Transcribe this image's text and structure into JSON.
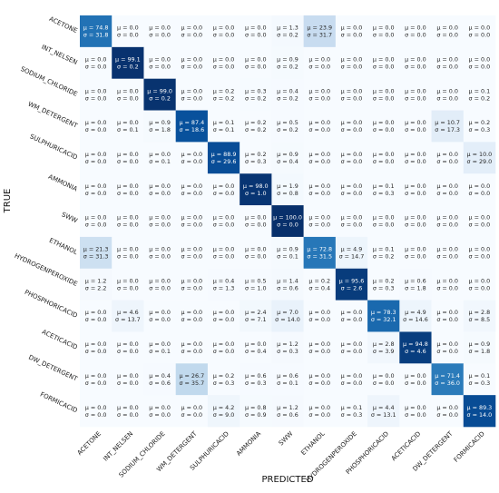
{
  "chart_data": {
    "type": "heatmap",
    "xlabel": "PREDICTED",
    "ylabel": "TRUE",
    "categories": [
      "ACETONE",
      "INT_NELSEN",
      "SODIUM_CHLORIDE",
      "WM_DETERGENT",
      "SULPHURICACID",
      "AMMONIA",
      "SWW",
      "ETHANOL",
      "HYDROGENPEROXIDE",
      "PHOSPHORICACID",
      "ACETICACID",
      "DW_DETERGENT",
      "FORMICACID"
    ],
    "mu_prefix": "μ = ",
    "sigma_prefix": "σ = ",
    "color_range": [
      0,
      100
    ],
    "colormap": "Blues",
    "mean": [
      [
        74.8,
        0.0,
        0.0,
        0.0,
        0.0,
        0.0,
        1.3,
        23.9,
        0.0,
        0.0,
        0.0,
        0.0,
        0.0
      ],
      [
        0.0,
        99.1,
        0.0,
        0.0,
        0.0,
        0.0,
        0.9,
        0.0,
        0.0,
        0.0,
        0.0,
        0.0,
        0.0
      ],
      [
        0.0,
        0.0,
        99.0,
        0.0,
        0.2,
        0.3,
        0.4,
        0.0,
        0.0,
        0.0,
        0.0,
        0.0,
        0.1
      ],
      [
        0.0,
        0.0,
        0.9,
        87.4,
        0.1,
        0.2,
        0.5,
        0.0,
        0.0,
        0.0,
        0.0,
        10.7,
        0.2
      ],
      [
        0.0,
        0.0,
        0.0,
        0.0,
        88.9,
        0.2,
        0.9,
        0.0,
        0.0,
        0.0,
        0.0,
        0.0,
        10.0
      ],
      [
        0.0,
        0.0,
        0.0,
        0.0,
        0.0,
        98.0,
        1.9,
        0.0,
        0.0,
        0.1,
        0.0,
        0.0,
        0.0
      ],
      [
        0.0,
        0.0,
        0.0,
        0.0,
        0.0,
        0.0,
        100.0,
        0.0,
        0.0,
        0.0,
        0.0,
        0.0,
        0.0
      ],
      [
        21.3,
        0.0,
        0.0,
        0.0,
        0.0,
        0.0,
        0.9,
        72.8,
        4.9,
        0.1,
        0.0,
        0.0,
        0.0
      ],
      [
        1.2,
        0.0,
        0.0,
        0.0,
        0.4,
        0.5,
        1.4,
        0.2,
        95.6,
        0.2,
        0.6,
        0.0,
        0.0
      ],
      [
        0.0,
        4.6,
        0.0,
        0.0,
        0.0,
        2.4,
        7.0,
        0.0,
        0.0,
        78.3,
        4.9,
        0.0,
        2.8
      ],
      [
        0.0,
        0.0,
        0.0,
        0.0,
        0.0,
        0.0,
        1.2,
        0.0,
        0.0,
        2.8,
        94.8,
        0.0,
        0.9
      ],
      [
        0.0,
        0.0,
        0.4,
        26.7,
        0.2,
        0.6,
        0.6,
        0.0,
        0.0,
        0.0,
        0.0,
        71.4,
        0.1
      ],
      [
        0.0,
        0.0,
        0.0,
        0.0,
        4.2,
        0.8,
        1.2,
        0.0,
        0.1,
        4.4,
        0.0,
        0.0,
        89.3
      ]
    ],
    "std": [
      [
        31.8,
        0.0,
        0.0,
        0.0,
        0.0,
        0.0,
        0.2,
        31.7,
        0.0,
        0.0,
        0.0,
        0.0,
        0.0
      ],
      [
        0.0,
        0.2,
        0.0,
        0.0,
        0.0,
        0.0,
        0.2,
        0.0,
        0.0,
        0.0,
        0.0,
        0.0,
        0.0
      ],
      [
        0.0,
        0.0,
        0.2,
        0.0,
        0.2,
        0.2,
        0.2,
        0.0,
        0.0,
        0.0,
        0.0,
        0.0,
        0.2
      ],
      [
        0.0,
        0.1,
        1.8,
        18.6,
        0.1,
        0.2,
        0.2,
        0.0,
        0.0,
        0.0,
        0.0,
        17.3,
        0.3
      ],
      [
        0.0,
        0.0,
        0.1,
        0.0,
        29.6,
        0.3,
        0.4,
        0.0,
        0.0,
        0.0,
        0.0,
        0.0,
        29.0
      ],
      [
        0.0,
        0.0,
        0.0,
        0.0,
        0.0,
        1.0,
        0.8,
        0.0,
        0.0,
        0.3,
        0.0,
        0.0,
        0.0
      ],
      [
        0.0,
        0.0,
        0.0,
        0.0,
        0.0,
        0.0,
        0.0,
        0.0,
        0.0,
        0.0,
        0.0,
        0.0,
        0.0
      ],
      [
        31.3,
        0.0,
        0.0,
        0.0,
        0.0,
        0.0,
        0.1,
        31.5,
        14.7,
        0.2,
        0.0,
        0.0,
        0.0
      ],
      [
        2.2,
        0.0,
        0.0,
        0.0,
        1.3,
        1.0,
        0.6,
        0.4,
        2.6,
        0.3,
        1.8,
        0.0,
        0.0
      ],
      [
        0.0,
        13.7,
        0.0,
        0.0,
        0.0,
        7.1,
        14.0,
        0.0,
        0.0,
        32.1,
        14.6,
        0.0,
        8.5
      ],
      [
        0.0,
        0.0,
        0.1,
        0.0,
        0.0,
        0.4,
        0.3,
        0.0,
        0.0,
        3.9,
        4.6,
        0.0,
        1.8
      ],
      [
        0.0,
        0.0,
        0.6,
        35.7,
        0.3,
        0.3,
        0.1,
        0.0,
        0.0,
        0.0,
        0.0,
        36.0,
        0.3
      ],
      [
        0.0,
        0.0,
        0.0,
        0.0,
        9.0,
        0.9,
        0.6,
        0.0,
        0.3,
        13.1,
        0.0,
        0.0,
        14.0
      ]
    ]
  }
}
